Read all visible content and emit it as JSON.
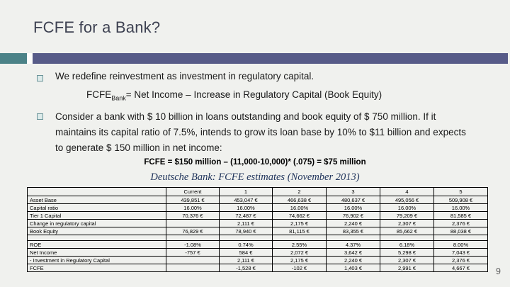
{
  "slide": {
    "title": "FCFE for a Bank?",
    "page_number": "9",
    "colors": {
      "background": "#f0f1ee",
      "accent_teal": "#4b8287",
      "accent_purple": "#575b88",
      "title_text": "#3e4252",
      "caption_text": "#21355c"
    },
    "bullets": [
      {
        "text": "We redefine reinvestment as investment in regulatory capital."
      },
      {
        "text": "Consider a bank with $ 10 billion in loans outstanding and book equity of $ 750 million. If it maintains its capital ratio of 7.5%, intends to grow its loan base by 10% to $11 billion and expects to generate $ 150 million in net income:"
      }
    ],
    "formula": {
      "prefix": "FCFE",
      "subscript": "Bank",
      "suffix": "= Net Income – Increase in Regulatory Capital (Book Equity)"
    },
    "calc_line": "FCFE = $150 million – (11,000-10,000)* (.075) = $75 million",
    "table_caption": "Deutsche Bank: FCFE estimates (November 2013)"
  },
  "table": {
    "header": [
      "",
      "Current",
      "1",
      "2",
      "3",
      "4",
      "5"
    ],
    "sections": [
      [
        [
          "Asset Base",
          "439,851 €",
          "453,047 €",
          "466,638 €",
          "480,637 €",
          "495,056 €",
          "509,908 €"
        ],
        [
          "Capital ratio",
          "16.00%",
          "16.00%",
          "16.00%",
          "16.00%",
          "16.00%",
          "16.00%"
        ],
        [
          "Tier 1 Capital",
          "70,376 €",
          "72,487 €",
          "74,662 €",
          "76,902 €",
          "79,209 €",
          "81,585 €"
        ],
        [
          "Change in regulatory capital",
          "",
          "2,111 €",
          "2,175 €",
          "2,240 €",
          "2,307 €",
          "2,376 €"
        ],
        [
          "Book Equity",
          "76,829 €",
          "78,940 €",
          "81,115 €",
          "83,355 €",
          "85,662 €",
          "88,038 €"
        ]
      ],
      [
        [
          "ROE",
          "-1.08%",
          "0.74%",
          "2.55%",
          "4.37%",
          "6.18%",
          "8.00%"
        ],
        [
          "Net Income",
          "-757 €",
          "584 €",
          "2,072 €",
          "3,642 €",
          "5,298 €",
          "7,043 €"
        ],
        [
          " - Investment in Regulatory Capital",
          "",
          "2,111 €",
          "2,175 €",
          "2,240 €",
          "2,307 €",
          "2,376 €"
        ],
        [
          "FCFE",
          "",
          "-1,528 €",
          "-102 €",
          "1,403 €",
          "2,991 €",
          "4,667 €"
        ]
      ]
    ]
  }
}
